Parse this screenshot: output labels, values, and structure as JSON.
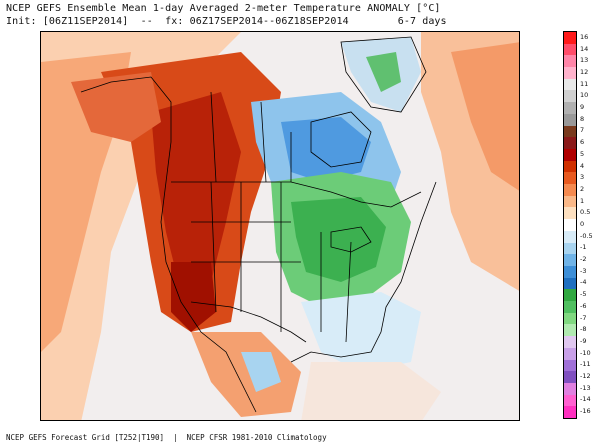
{
  "header": {
    "title": "NCEP GEFS Ensemble Mean 1-day Averaged 2-meter Temperature ANOMALY [°C]",
    "init_line": "Init: [06Z11SEP2014]  --  fx: 06Z17SEP2014--06Z18SEP2014        6-7 days"
  },
  "footer": {
    "text": "NCEP GEFS Forecast Grid [T252|T190]  |  NCEP CFSR 1981-2010 Climatology"
  },
  "colorbar": {
    "labels": [
      "16",
      "14",
      "13",
      "12",
      "11",
      "10",
      "9",
      "8",
      "7",
      "6",
      "5",
      "4",
      "3",
      "2",
      "1",
      "0.5",
      "0",
      "-0.5",
      "-1",
      "-2",
      "-3",
      "-4",
      "-5",
      "-6",
      "-7",
      "-8",
      "-9",
      "-10",
      "-11",
      "-12",
      "-13",
      "-14",
      "-16"
    ],
    "colors": [
      "#ff1a1a",
      "#ff4d6a",
      "#ff85a8",
      "#ffb3cc",
      "#e8e8e8",
      "#d0d0d0",
      "#b0b0b0",
      "#999999",
      "#7a3b1e",
      "#8b1a1a",
      "#b00000",
      "#d03000",
      "#e85a20",
      "#f58a50",
      "#fab888",
      "#fde0c0",
      "#ffffff",
      "#d8ecf8",
      "#a8d4f0",
      "#70b4e8",
      "#3d8fd8",
      "#1e6fc0",
      "#30a840",
      "#50c060",
      "#80d880",
      "#b0eab0",
      "#e0c8f0",
      "#c8a0e8",
      "#a070d8",
      "#8050c0",
      "#e080e0",
      "#ff60d0",
      "#ff30c0"
    ]
  },
  "map": {
    "region": "North America",
    "colors": {
      "ocean_neutral": "#f2f0f0",
      "warm_light": "#fde0c0",
      "warm_mid": "#f58a50",
      "warm_strong": "#d03000",
      "warm_deep": "#a01000",
      "cool_light": "#a8d4f0",
      "cool_mid": "#3d8fd8",
      "cool_green": "#50c060",
      "cool_green_deep": "#30a840",
      "border_line": "#000000"
    }
  }
}
